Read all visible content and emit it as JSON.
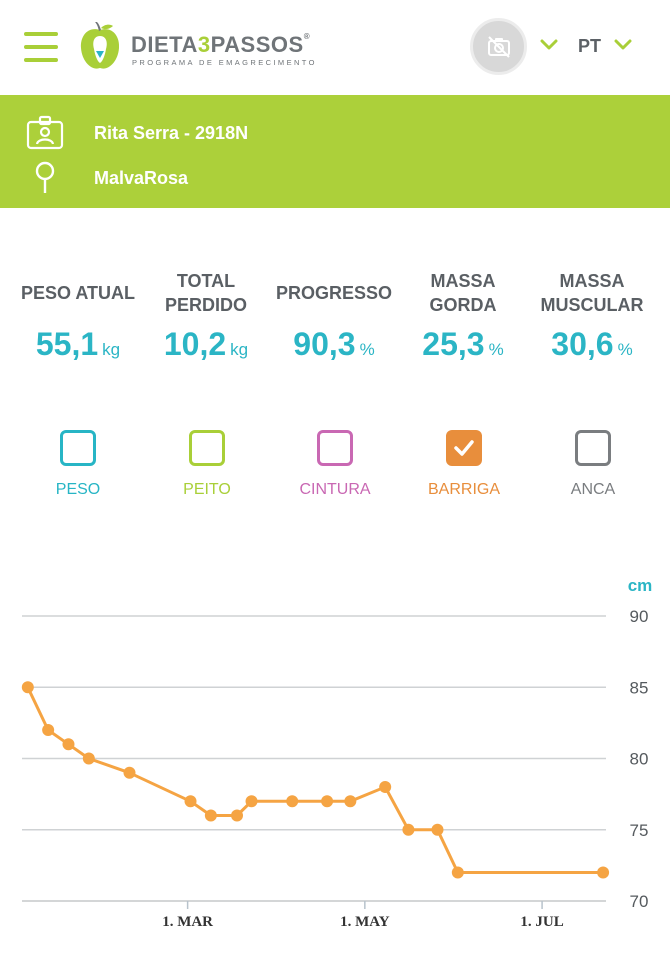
{
  "header": {
    "brand_main": "DIETA",
    "brand_num": "3",
    "brand_end": "PASSOS",
    "brand_sub": "PROGRAMA DE EMAGRECIMENTO",
    "language": "PT",
    "icons": {
      "menu": "hamburger-menu-icon",
      "photo": "camera-off-icon",
      "chevron": "chevron-down-icon"
    }
  },
  "client": {
    "name": "Rita Serra - 2918N",
    "location": "MalvaRosa",
    "icons": {
      "name": "id-card-icon",
      "location": "location-pin-icon"
    }
  },
  "stats": [
    {
      "label": "PESO ATUAL",
      "value": "55,1",
      "unit": "kg"
    },
    {
      "label": "TOTAL PERDIDO",
      "value": "10,2",
      "unit": "kg"
    },
    {
      "label": "PROGRESSO",
      "value": "90,3",
      "unit": "%"
    },
    {
      "label": "MASSA GORDA",
      "value": "25,3",
      "unit": "%"
    },
    {
      "label": "MASSA MUSCULAR",
      "value": "30,6",
      "unit": "%"
    }
  ],
  "filters": [
    {
      "label": "PESO",
      "color": "#27b5c5",
      "checked": false
    },
    {
      "label": "PEITO",
      "color": "#a9cf38",
      "checked": false
    },
    {
      "label": "CINTURA",
      "color": "#c968b3",
      "checked": false
    },
    {
      "label": "BARRIGA",
      "color": "#e88e3c",
      "checked": true
    },
    {
      "label": "ANCA",
      "color": "#7a7d80",
      "checked": false
    }
  ],
  "colors": {
    "accent": "#acd03a",
    "teal": "#2bb5c5",
    "series": "#f5a443",
    "grid": "#cfd2d4"
  },
  "chart_data": {
    "type": "line",
    "ylabel": "cm",
    "ylim": [
      70,
      90
    ],
    "yticks": [
      90,
      85,
      80,
      75,
      70
    ],
    "xticks": [
      {
        "label": "1. MAR",
        "date": "2023-03-01"
      },
      {
        "label": "1. MAY",
        "date": "2023-05-01"
      },
      {
        "label": "1. JUL",
        "date": "2023-07-01"
      }
    ],
    "xlim": [
      "2023-01-03",
      "2023-07-23"
    ],
    "grid": true,
    "series": [
      {
        "name": "BARRIGA",
        "color": "#f5a443",
        "points": [
          {
            "x": "2023-01-05",
            "y": 85
          },
          {
            "x": "2023-01-12",
            "y": 82
          },
          {
            "x": "2023-01-19",
            "y": 81
          },
          {
            "x": "2023-01-26",
            "y": 80
          },
          {
            "x": "2023-02-09",
            "y": 79
          },
          {
            "x": "2023-03-02",
            "y": 77
          },
          {
            "x": "2023-03-09",
            "y": 76
          },
          {
            "x": "2023-03-18",
            "y": 76
          },
          {
            "x": "2023-03-23",
            "y": 77
          },
          {
            "x": "2023-04-06",
            "y": 77
          },
          {
            "x": "2023-04-18",
            "y": 77
          },
          {
            "x": "2023-04-26",
            "y": 77
          },
          {
            "x": "2023-05-08",
            "y": 78
          },
          {
            "x": "2023-05-16",
            "y": 75
          },
          {
            "x": "2023-05-26",
            "y": 75
          },
          {
            "x": "2023-06-02",
            "y": 72
          },
          {
            "x": "2023-07-22",
            "y": 72
          }
        ]
      }
    ]
  }
}
